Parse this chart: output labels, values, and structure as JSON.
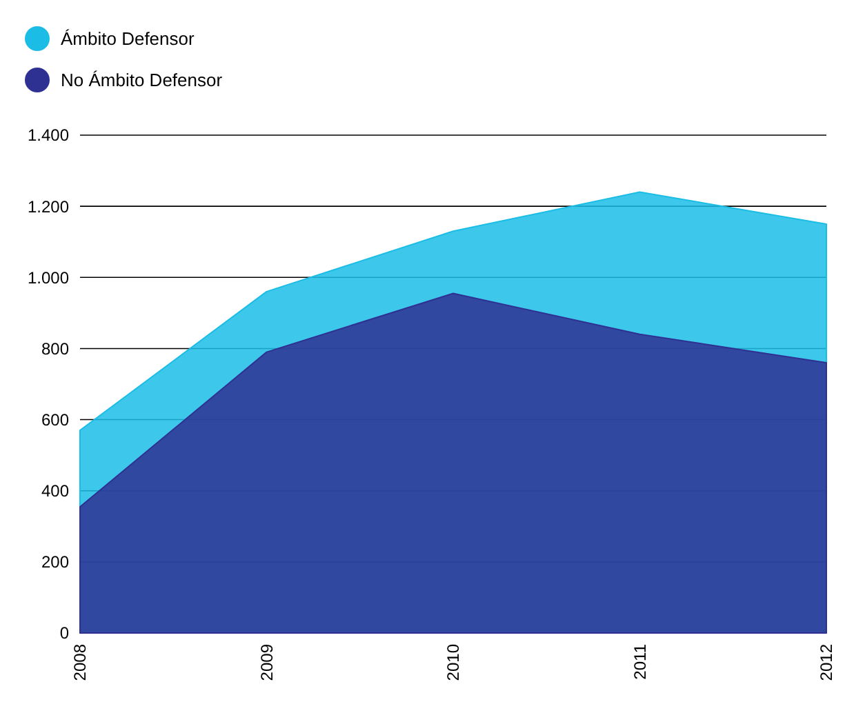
{
  "chart_data": {
    "type": "area",
    "categories": [
      "2008",
      "2009",
      "2010",
      "2011",
      "2012"
    ],
    "series": [
      {
        "name": "Ámbito Defensor",
        "color": "#1bbde6",
        "values": [
          570,
          960,
          1130,
          1240,
          1150
        ]
      },
      {
        "name": "No Ámbito Defensor",
        "color": "#2e3192",
        "values": [
          355,
          790,
          955,
          840,
          760
        ]
      }
    ],
    "ylim": [
      0,
      1400
    ],
    "yticks": [
      {
        "value": 0,
        "label": "0"
      },
      {
        "value": 200,
        "label": "200"
      },
      {
        "value": 400,
        "label": "400"
      },
      {
        "value": 600,
        "label": "600"
      },
      {
        "value": 800,
        "label": "800"
      },
      {
        "value": 1000,
        "label": "1.000"
      },
      {
        "value": 1200,
        "label": "1.200"
      },
      {
        "value": 1400,
        "label": "1.400"
      }
    ],
    "grid": true,
    "legend": "top left"
  }
}
